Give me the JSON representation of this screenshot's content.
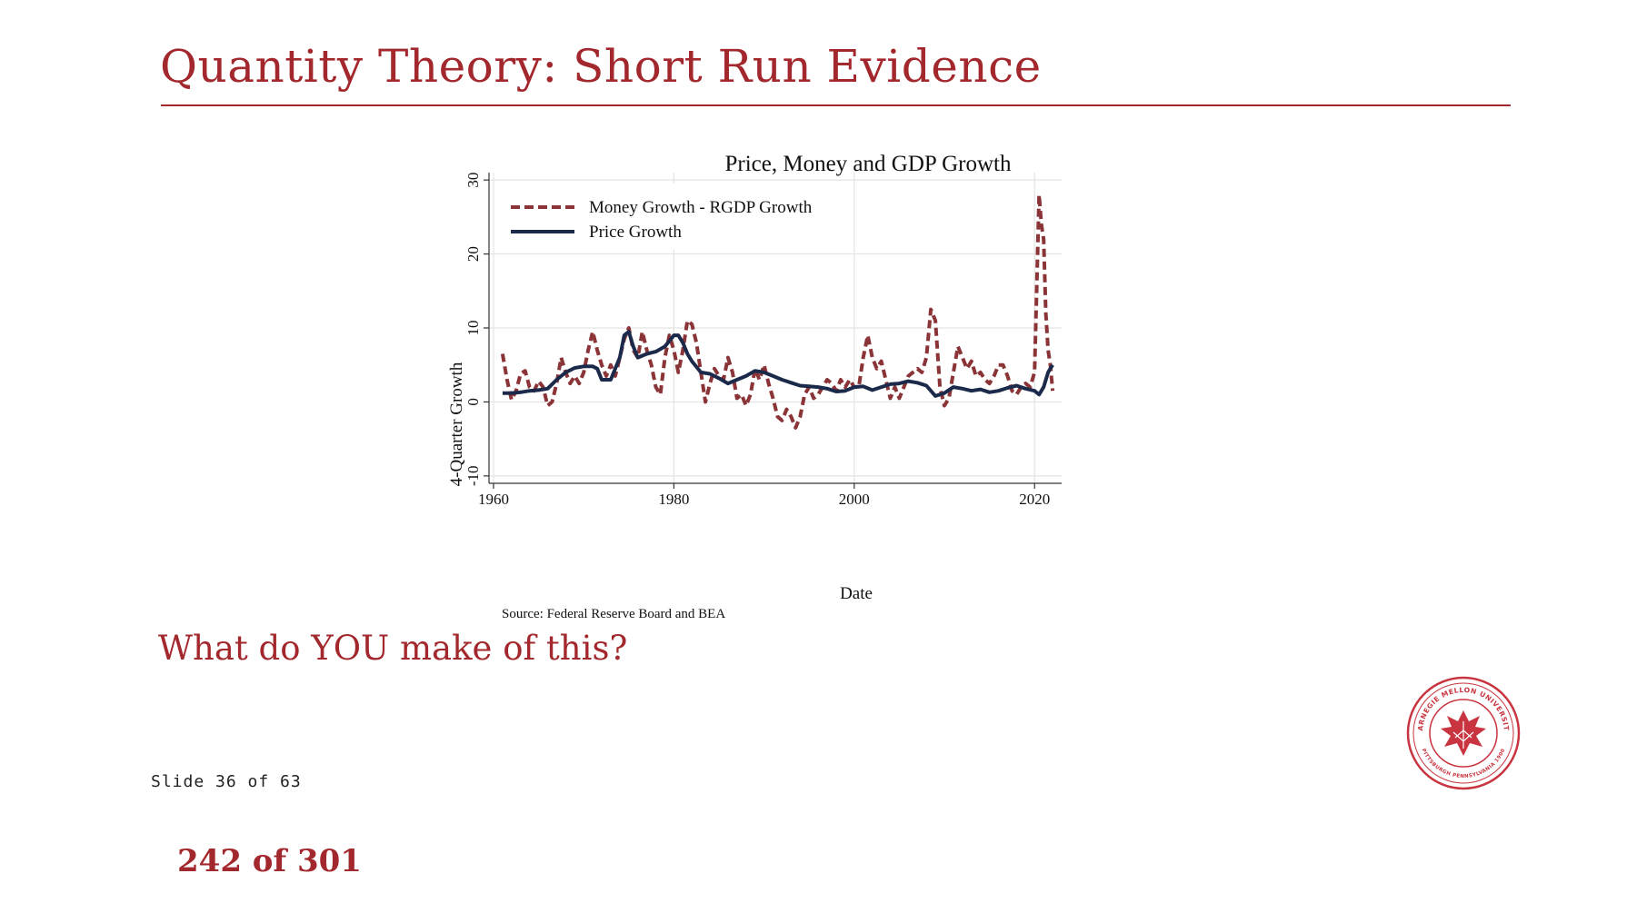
{
  "slide": {
    "title": "Quantity Theory: Short Run Evidence",
    "question": "What do YOU make of this?",
    "slide_counter": "Slide 36 of 63",
    "page_counter": "242 of 301"
  },
  "logo": {
    "text_top": "CARNEGIE MELLON UNIVERSITY",
    "text_bottom": "PITTSBURGH PENNSYLVANIA 1900",
    "icon": "thistle-seal-icon"
  },
  "colors": {
    "accent": "#a3282d",
    "money_series": "#8b3438",
    "price_series": "#1b2a4a",
    "grid": "#e3e3e3"
  },
  "chart_data": {
    "type": "line",
    "title": "Price, Money and GDP Growth",
    "xlabel": "Date",
    "ylabel": "4-Quarter Growth",
    "source": "Source: Federal Reserve Board and BEA",
    "xlim": [
      1959.5,
      2023
    ],
    "ylim": [
      -11,
      31
    ],
    "xticks": [
      1960,
      1980,
      2000,
      2020
    ],
    "yticks": [
      -10,
      0,
      10,
      20,
      30
    ],
    "grid": true,
    "legend_position": "top-left",
    "series": [
      {
        "name": "Money Growth - RGDP Growth",
        "style": "dashed",
        "x": [
          1961.0,
          1961.5,
          1962.0,
          1962.5,
          1963.0,
          1963.5,
          1964.0,
          1964.5,
          1965.0,
          1965.5,
          1966.0,
          1966.5,
          1967.0,
          1967.5,
          1968.0,
          1968.5,
          1969.0,
          1969.5,
          1970.0,
          1970.5,
          1971.0,
          1971.5,
          1972.0,
          1972.5,
          1973.0,
          1973.5,
          1974.0,
          1974.5,
          1975.0,
          1975.5,
          1976.0,
          1976.5,
          1977.0,
          1977.5,
          1978.0,
          1978.5,
          1979.0,
          1979.5,
          1980.0,
          1980.5,
          1981.0,
          1981.5,
          1982.0,
          1982.5,
          1983.0,
          1983.5,
          1984.0,
          1984.5,
          1985.0,
          1985.5,
          1986.0,
          1986.5,
          1987.0,
          1987.5,
          1988.0,
          1988.5,
          1989.0,
          1989.5,
          1990.0,
          1990.5,
          1991.0,
          1991.5,
          1992.0,
          1992.5,
          1993.0,
          1993.5,
          1994.0,
          1994.5,
          1995.0,
          1995.5,
          1996.0,
          1996.5,
          1997.0,
          1997.5,
          1998.0,
          1998.5,
          1999.0,
          1999.5,
          2000.0,
          2000.5,
          2001.0,
          2001.5,
          2002.0,
          2002.5,
          2003.0,
          2003.5,
          2004.0,
          2004.5,
          2005.0,
          2005.5,
          2006.0,
          2006.5,
          2007.0,
          2007.5,
          2008.0,
          2008.5,
          2009.0,
          2009.5,
          2010.0,
          2010.5,
          2011.0,
          2011.5,
          2012.0,
          2012.5,
          2013.0,
          2013.5,
          2014.0,
          2014.5,
          2015.0,
          2015.5,
          2016.0,
          2016.5,
          2017.0,
          2017.5,
          2018.0,
          2018.5,
          2019.0,
          2019.5,
          2020.0,
          2020.25,
          2020.5,
          2020.75,
          2021.0,
          2021.25,
          2021.5,
          2021.75,
          2022.0
        ],
        "y": [
          6.5,
          3.0,
          0.3,
          1.5,
          3.8,
          4.2,
          2.0,
          1.5,
          2.8,
          2.0,
          -0.5,
          0.0,
          2.5,
          6.0,
          4.0,
          2.5,
          3.5,
          2.5,
          4.0,
          7.0,
          9.5,
          7.0,
          5.0,
          3.5,
          5.0,
          3.5,
          6.0,
          8.5,
          10.0,
          7.0,
          6.0,
          9.5,
          7.0,
          5.0,
          2.0,
          1.0,
          6.0,
          9.0,
          7.0,
          4.0,
          7.0,
          11.0,
          10.5,
          8.0,
          4.0,
          0.0,
          2.5,
          4.5,
          3.5,
          3.0,
          6.0,
          4.0,
          0.5,
          1.0,
          -0.5,
          1.0,
          4.5,
          3.0,
          5.0,
          2.5,
          0.5,
          -2.0,
          -2.5,
          -1.0,
          -2.0,
          -3.5,
          -2.0,
          1.0,
          2.0,
          0.5,
          1.0,
          2.0,
          3.0,
          2.5,
          1.5,
          3.0,
          2.0,
          3.0,
          2.0,
          2.0,
          6.0,
          9.0,
          6.0,
          4.5,
          5.5,
          3.0,
          0.5,
          2.0,
          0.5,
          2.0,
          3.5,
          4.0,
          4.5,
          4.0,
          6.0,
          12.5,
          11.0,
          2.0,
          -0.5,
          0.5,
          4.0,
          7.5,
          6.0,
          4.5,
          5.5,
          3.5,
          4.0,
          3.0,
          2.5,
          3.5,
          5.0,
          5.0,
          3.5,
          1.5,
          1.0,
          2.0,
          2.5,
          2.0,
          4.0,
          16.0,
          28.0,
          24.0,
          22.0,
          12.0,
          7.0,
          5.0,
          1.5
        ]
      },
      {
        "name": "Price Growth",
        "style": "solid",
        "x": [
          1961.0,
          1962.0,
          1963.0,
          1964.0,
          1965.0,
          1966.0,
          1967.0,
          1968.0,
          1969.0,
          1970.0,
          1971.0,
          1971.5,
          1972.0,
          1973.0,
          1973.5,
          1974.0,
          1974.5,
          1975.0,
          1975.5,
          1976.0,
          1977.0,
          1978.0,
          1979.0,
          1980.0,
          1980.5,
          1981.0,
          1981.5,
          1982.0,
          1983.0,
          1984.0,
          1985.0,
          1986.0,
          1987.0,
          1988.0,
          1989.0,
          1990.0,
          1991.0,
          1992.0,
          1993.0,
          1994.0,
          1995.0,
          1996.0,
          1997.0,
          1998.0,
          1999.0,
          2000.0,
          2001.0,
          2002.0,
          2003.0,
          2004.0,
          2005.0,
          2006.0,
          2007.0,
          2008.0,
          2009.0,
          2010.0,
          2011.0,
          2012.0,
          2013.0,
          2014.0,
          2015.0,
          2016.0,
          2017.0,
          2018.0,
          2019.0,
          2020.0,
          2020.5,
          2021.0,
          2021.5,
          2022.0
        ],
        "y": [
          1.2,
          1.2,
          1.3,
          1.5,
          1.6,
          1.8,
          3.0,
          4.0,
          4.6,
          4.8,
          4.8,
          4.5,
          3.0,
          3.0,
          4.5,
          6.0,
          9.0,
          9.5,
          7.5,
          6.0,
          6.5,
          6.8,
          7.5,
          9.0,
          9.0,
          8.0,
          6.5,
          5.5,
          4.0,
          3.8,
          3.2,
          2.5,
          3.0,
          3.5,
          4.2,
          4.0,
          3.5,
          3.0,
          2.6,
          2.2,
          2.1,
          2.0,
          1.8,
          1.4,
          1.5,
          2.0,
          2.1,
          1.6,
          2.0,
          2.4,
          2.5,
          2.8,
          2.6,
          2.2,
          0.8,
          1.2,
          2.0,
          1.8,
          1.5,
          1.7,
          1.3,
          1.5,
          1.9,
          2.2,
          1.8,
          1.5,
          1.0,
          2.0,
          4.0,
          5.0
        ]
      }
    ]
  }
}
